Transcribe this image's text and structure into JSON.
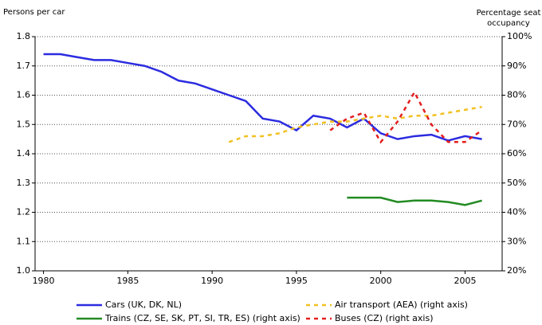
{
  "chart_data": {
    "type": "line",
    "ylabel": "Persons per car",
    "y2label": "Percentage seat occupancy",
    "xlim": [
      1979.5,
      2007.2
    ],
    "xticks": [
      1980,
      1985,
      1990,
      1995,
      2000,
      2005
    ],
    "ylim": [
      1.0,
      1.8
    ],
    "yticks": [
      {
        "value": 1.0,
        "label": "1.0"
      },
      1.1,
      1.2,
      1.3,
      1.4,
      1.5,
      1.6,
      1.7,
      1.8
    ],
    "y2lim": [
      20,
      100
    ],
    "y2ticks": [
      {
        "value": 20,
        "label": "20%"
      },
      {
        "value": 30,
        "label": "30%"
      },
      {
        "value": 40,
        "label": "40%"
      },
      {
        "value": 50,
        "label": "50%"
      },
      {
        "value": 60,
        "label": "60%"
      },
      {
        "value": 70,
        "label": "70%"
      },
      {
        "value": 80,
        "label": "80%"
      },
      {
        "value": 90,
        "label": "90%"
      },
      {
        "value": 100,
        "label": "100%"
      }
    ],
    "grid": true,
    "series": [
      {
        "name": "Cars (UK, DK, NL)",
        "color": "#2b2be0",
        "style": "solid",
        "x": [
          1980,
          1981,
          1982,
          1983,
          1984,
          1985,
          1986,
          1987,
          1988,
          1989,
          1990,
          1991,
          1992,
          1993,
          1994,
          1995,
          1996,
          1997,
          1998,
          1999,
          2000,
          2001,
          2002,
          2003,
          2004,
          2005,
          2006
        ],
        "values": [
          1.74,
          1.74,
          1.73,
          1.72,
          1.72,
          1.71,
          1.7,
          1.68,
          1.65,
          1.64,
          1.62,
          1.6,
          1.58,
          1.52,
          1.51,
          1.48,
          1.53,
          1.52,
          1.49,
          1.52,
          1.47,
          1.45,
          1.46,
          1.465,
          1.445,
          1.46,
          1.45
        ]
      },
      {
        "name": "Trains (CZ, SE, SK, PT, SI, TR, ES) (right axis)",
        "color": "#228b22",
        "style": "solid",
        "axis": "y2",
        "x": [
          1998,
          1999,
          2000,
          2001,
          2002,
          2003,
          2004,
          2005,
          2006
        ],
        "values": [
          45,
          45,
          45,
          43.5,
          44,
          44,
          43.5,
          42.5,
          44
        ]
      },
      {
        "name": "Air transport (AEA) (right axis)",
        "color": "#f2c021",
        "style": "dashed",
        "axis": "y2",
        "x": [
          1991,
          1992,
          1993,
          1994,
          1995,
          1996,
          1997,
          1998,
          1999,
          2000,
          2001,
          2002,
          2003,
          2004,
          2005,
          2006
        ],
        "values": [
          64,
          66,
          66,
          67,
          69,
          70,
          71,
          71,
          72,
          73,
          72,
          73,
          73,
          74,
          75,
          76
        ]
      },
      {
        "name": "Buses (CZ) (right axis)",
        "color": "#e41e1e",
        "style": "dashed",
        "axis": "y2",
        "x": [
          1997,
          1998,
          1999,
          2000,
          2001,
          2002,
          2003,
          2004,
          2005,
          2006
        ],
        "values": [
          68,
          72,
          74,
          64,
          71,
          81,
          70,
          64,
          64,
          68
        ]
      }
    ]
  }
}
